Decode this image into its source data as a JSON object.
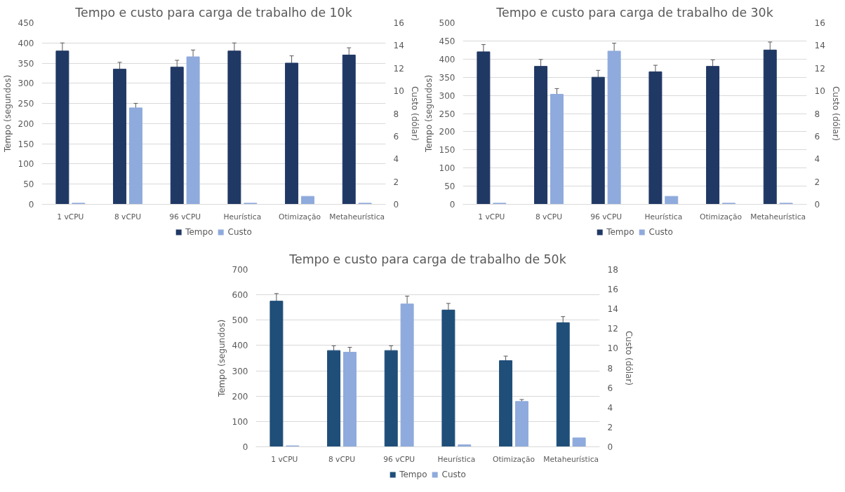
{
  "chart_data": [
    {
      "type": "bar",
      "title": "Tempo e custo para carga de trabalho de 10k",
      "ylabel": "Tempo (segundos)",
      "y2label": "Custo (dólar)",
      "categories": [
        "1 vCPU",
        "8 vCPU",
        "96 vCPU",
        "Heurística",
        "Otimização",
        "Metaheurística"
      ],
      "series": [
        {
          "name": "Tempo",
          "color": "#203864",
          "values": [
            380,
            335,
            340,
            380,
            350,
            370
          ],
          "errors": [
            20,
            17,
            17,
            20,
            18,
            18
          ]
        },
        {
          "name": "Custo",
          "color": "#8faadc",
          "axis": "y2",
          "values": [
            0.1,
            8.5,
            13.0,
            0.1,
            0.7,
            0.1
          ],
          "errors": [
            null,
            0.4,
            0.6,
            null,
            null,
            null
          ]
        }
      ],
      "ylim": [
        0,
        450
      ],
      "yticks": [
        0,
        50,
        100,
        150,
        200,
        250,
        300,
        350,
        400,
        450
      ],
      "y2lim": [
        0,
        16
      ],
      "y2ticks": [
        0,
        2,
        4,
        6,
        8,
        10,
        12,
        14,
        16
      ],
      "grid": "y",
      "legend": "bottom"
    },
    {
      "type": "bar",
      "title": "Tempo e custo para carga de trabalho de 30k",
      "ylabel": "Tempo (segundos)",
      "y2label": "Custo (dólar)",
      "categories": [
        "1 vCPU",
        "8 vCPU",
        "96 vCPU",
        "Heurística",
        "Otimização",
        "Metaheurística"
      ],
      "series": [
        {
          "name": "Tempo",
          "color": "#203864",
          "values": [
            420,
            380,
            350,
            365,
            380,
            425
          ],
          "errors": [
            20,
            19,
            19,
            18,
            18,
            22
          ]
        },
        {
          "name": "Custo",
          "color": "#8faadc",
          "axis": "y2",
          "values": [
            0.1,
            9.7,
            13.5,
            0.7,
            0.1,
            0.1
          ],
          "errors": [
            null,
            0.5,
            0.7,
            null,
            null,
            null
          ]
        }
      ],
      "ylim": [
        0,
        500
      ],
      "yticks": [
        0,
        50,
        100,
        150,
        200,
        250,
        300,
        350,
        400,
        450,
        500
      ],
      "y2lim": [
        0,
        16
      ],
      "y2ticks": [
        0,
        2,
        4,
        6,
        8,
        10,
        12,
        14,
        16
      ],
      "grid": "y",
      "legend": "bottom"
    },
    {
      "type": "bar",
      "title": "Tempo e custo para carga de trabalho de 50k",
      "ylabel": "Tempo (segundos)",
      "y2label": "Custo (dólar)",
      "categories": [
        "1 vCPU",
        "8 vCPU",
        "96 vCPU",
        "Heurística",
        "Otimização",
        "Metaheurística"
      ],
      "series": [
        {
          "name": "Tempo",
          "color": "#1f4e79",
          "values": [
            575,
            380,
            380,
            540,
            340,
            490
          ],
          "errors": [
            30,
            19,
            19,
            26,
            18,
            24
          ]
        },
        {
          "name": "Custo",
          "color": "#8faadc",
          "axis": "y2",
          "values": [
            0.1,
            9.6,
            14.5,
            0.2,
            4.6,
            0.9
          ],
          "errors": [
            null,
            0.5,
            0.8,
            null,
            0.2,
            null
          ]
        }
      ],
      "ylim": [
        0,
        700
      ],
      "yticks": [
        0,
        100,
        200,
        300,
        400,
        500,
        600,
        700
      ],
      "y2lim": [
        0,
        18
      ],
      "y2ticks": [
        0,
        2,
        4,
        6,
        8,
        10,
        12,
        14,
        16,
        18
      ],
      "grid": "y",
      "legend": "bottom"
    }
  ]
}
